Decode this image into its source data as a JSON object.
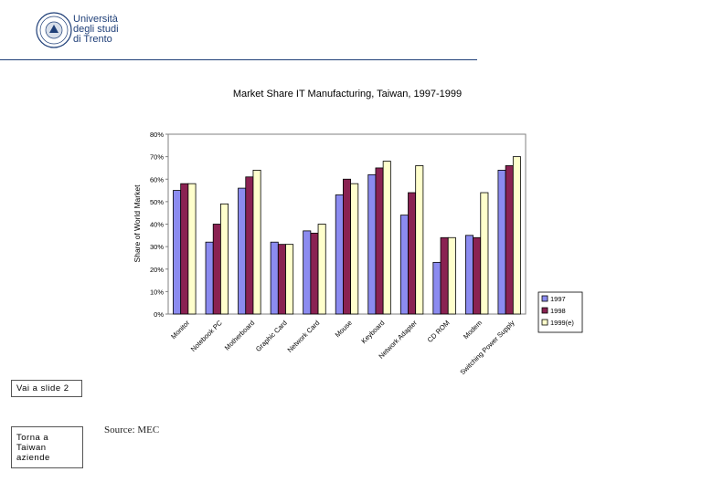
{
  "logo": {
    "icon": "university-seal-icon",
    "lines": [
      "Università",
      "degli studi",
      "di Trento"
    ],
    "color": "#1f3f78"
  },
  "buttons": {
    "slide2": "Vai a slide 2",
    "torna": [
      "Torna a",
      "Taiwan",
      "aziende"
    ]
  },
  "source": "Source: MEC",
  "chart_data": {
    "type": "bar",
    "title": "Market Share IT Manufacturing, Taiwan, 1997-1999",
    "xlabel": "",
    "ylabel": "Share of World Market",
    "ylim": [
      0,
      80
    ],
    "yticks": [
      "0%",
      "10%",
      "20%",
      "30%",
      "40%",
      "50%",
      "60%",
      "70%",
      "80%"
    ],
    "grid": false,
    "legend": "right",
    "categories": [
      "Monitor",
      "Notebook PC",
      "Motherboard",
      "Graphic Card",
      "Network Card",
      "Mouse",
      "Keyboard",
      "Network Adapter",
      "CD ROM",
      "Modem",
      "Switching Power Supply"
    ],
    "series": [
      {
        "name": "1997",
        "color": "#8b8bf0",
        "values": [
          55,
          32,
          56,
          32,
          37,
          53,
          62,
          44,
          23,
          35,
          64
        ]
      },
      {
        "name": "1998",
        "color": "#8a2252",
        "values": [
          58,
          40,
          61,
          31,
          36,
          60,
          65,
          54,
          34,
          34,
          66
        ]
      },
      {
        "name": "1999(e)",
        "color": "#ffffcc",
        "values": [
          58,
          49,
          64,
          31,
          40,
          58,
          68,
          66,
          34,
          54,
          70
        ]
      }
    ]
  }
}
